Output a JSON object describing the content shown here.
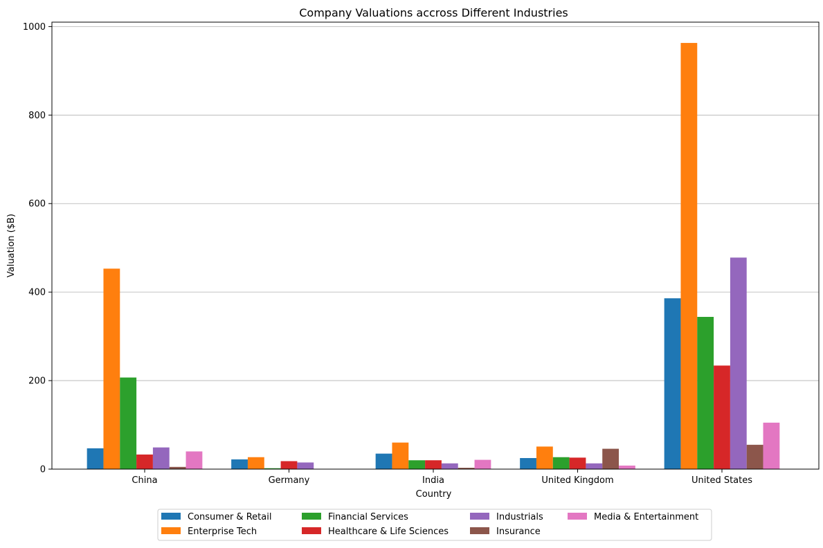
{
  "chart_data": {
    "type": "bar",
    "title": "Company Valuations accross Different Industries",
    "xlabel": "Country",
    "ylabel": "Valuation ($B)",
    "ylim": [
      0,
      1010
    ],
    "yticks": [
      0,
      200,
      400,
      600,
      800,
      1000
    ],
    "grid": "y",
    "legend_position": "bottom-center",
    "categories": [
      "China",
      "Germany",
      "India",
      "United Kingdom",
      "United States"
    ],
    "series": [
      {
        "name": "Consumer & Retail",
        "color": "#1f77b4",
        "values": [
          47,
          22,
          35,
          25,
          386
        ]
      },
      {
        "name": "Enterprise Tech",
        "color": "#ff7f0e",
        "values": [
          453,
          27,
          60,
          51,
          963
        ]
      },
      {
        "name": "Financial Services",
        "color": "#2ca02c",
        "values": [
          207,
          2,
          20,
          27,
          344
        ]
      },
      {
        "name": "Healthcare & Life Sciences",
        "color": "#d62728",
        "values": [
          33,
          18,
          20,
          26,
          234
        ]
      },
      {
        "name": "Industrials",
        "color": "#9467bd",
        "values": [
          49,
          15,
          13,
          13,
          478
        ]
      },
      {
        "name": "Insurance",
        "color": "#8c564b",
        "values": [
          5,
          0,
          3,
          46,
          55
        ]
      },
      {
        "name": "Media & Entertainment",
        "color": "#e377c2",
        "values": [
          40,
          0,
          21,
          8,
          105
        ]
      }
    ]
  }
}
